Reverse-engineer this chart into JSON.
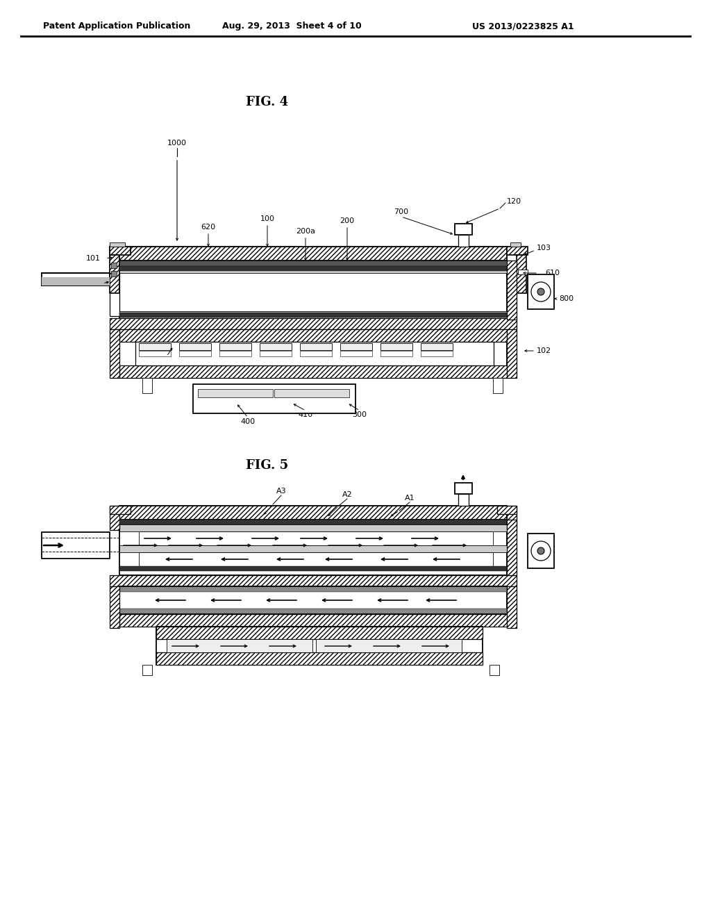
{
  "bg_color": "#ffffff",
  "header_left": "Patent Application Publication",
  "header_mid": "Aug. 29, 2013  Sheet 4 of 10",
  "header_right": "US 2013/0223825 A1",
  "fig4_title": "FIG. 4",
  "fig5_title": "FIG. 5",
  "line_color": "#000000",
  "label_fontsize": 8,
  "title_fontsize": 12,
  "hatch_density": "////"
}
